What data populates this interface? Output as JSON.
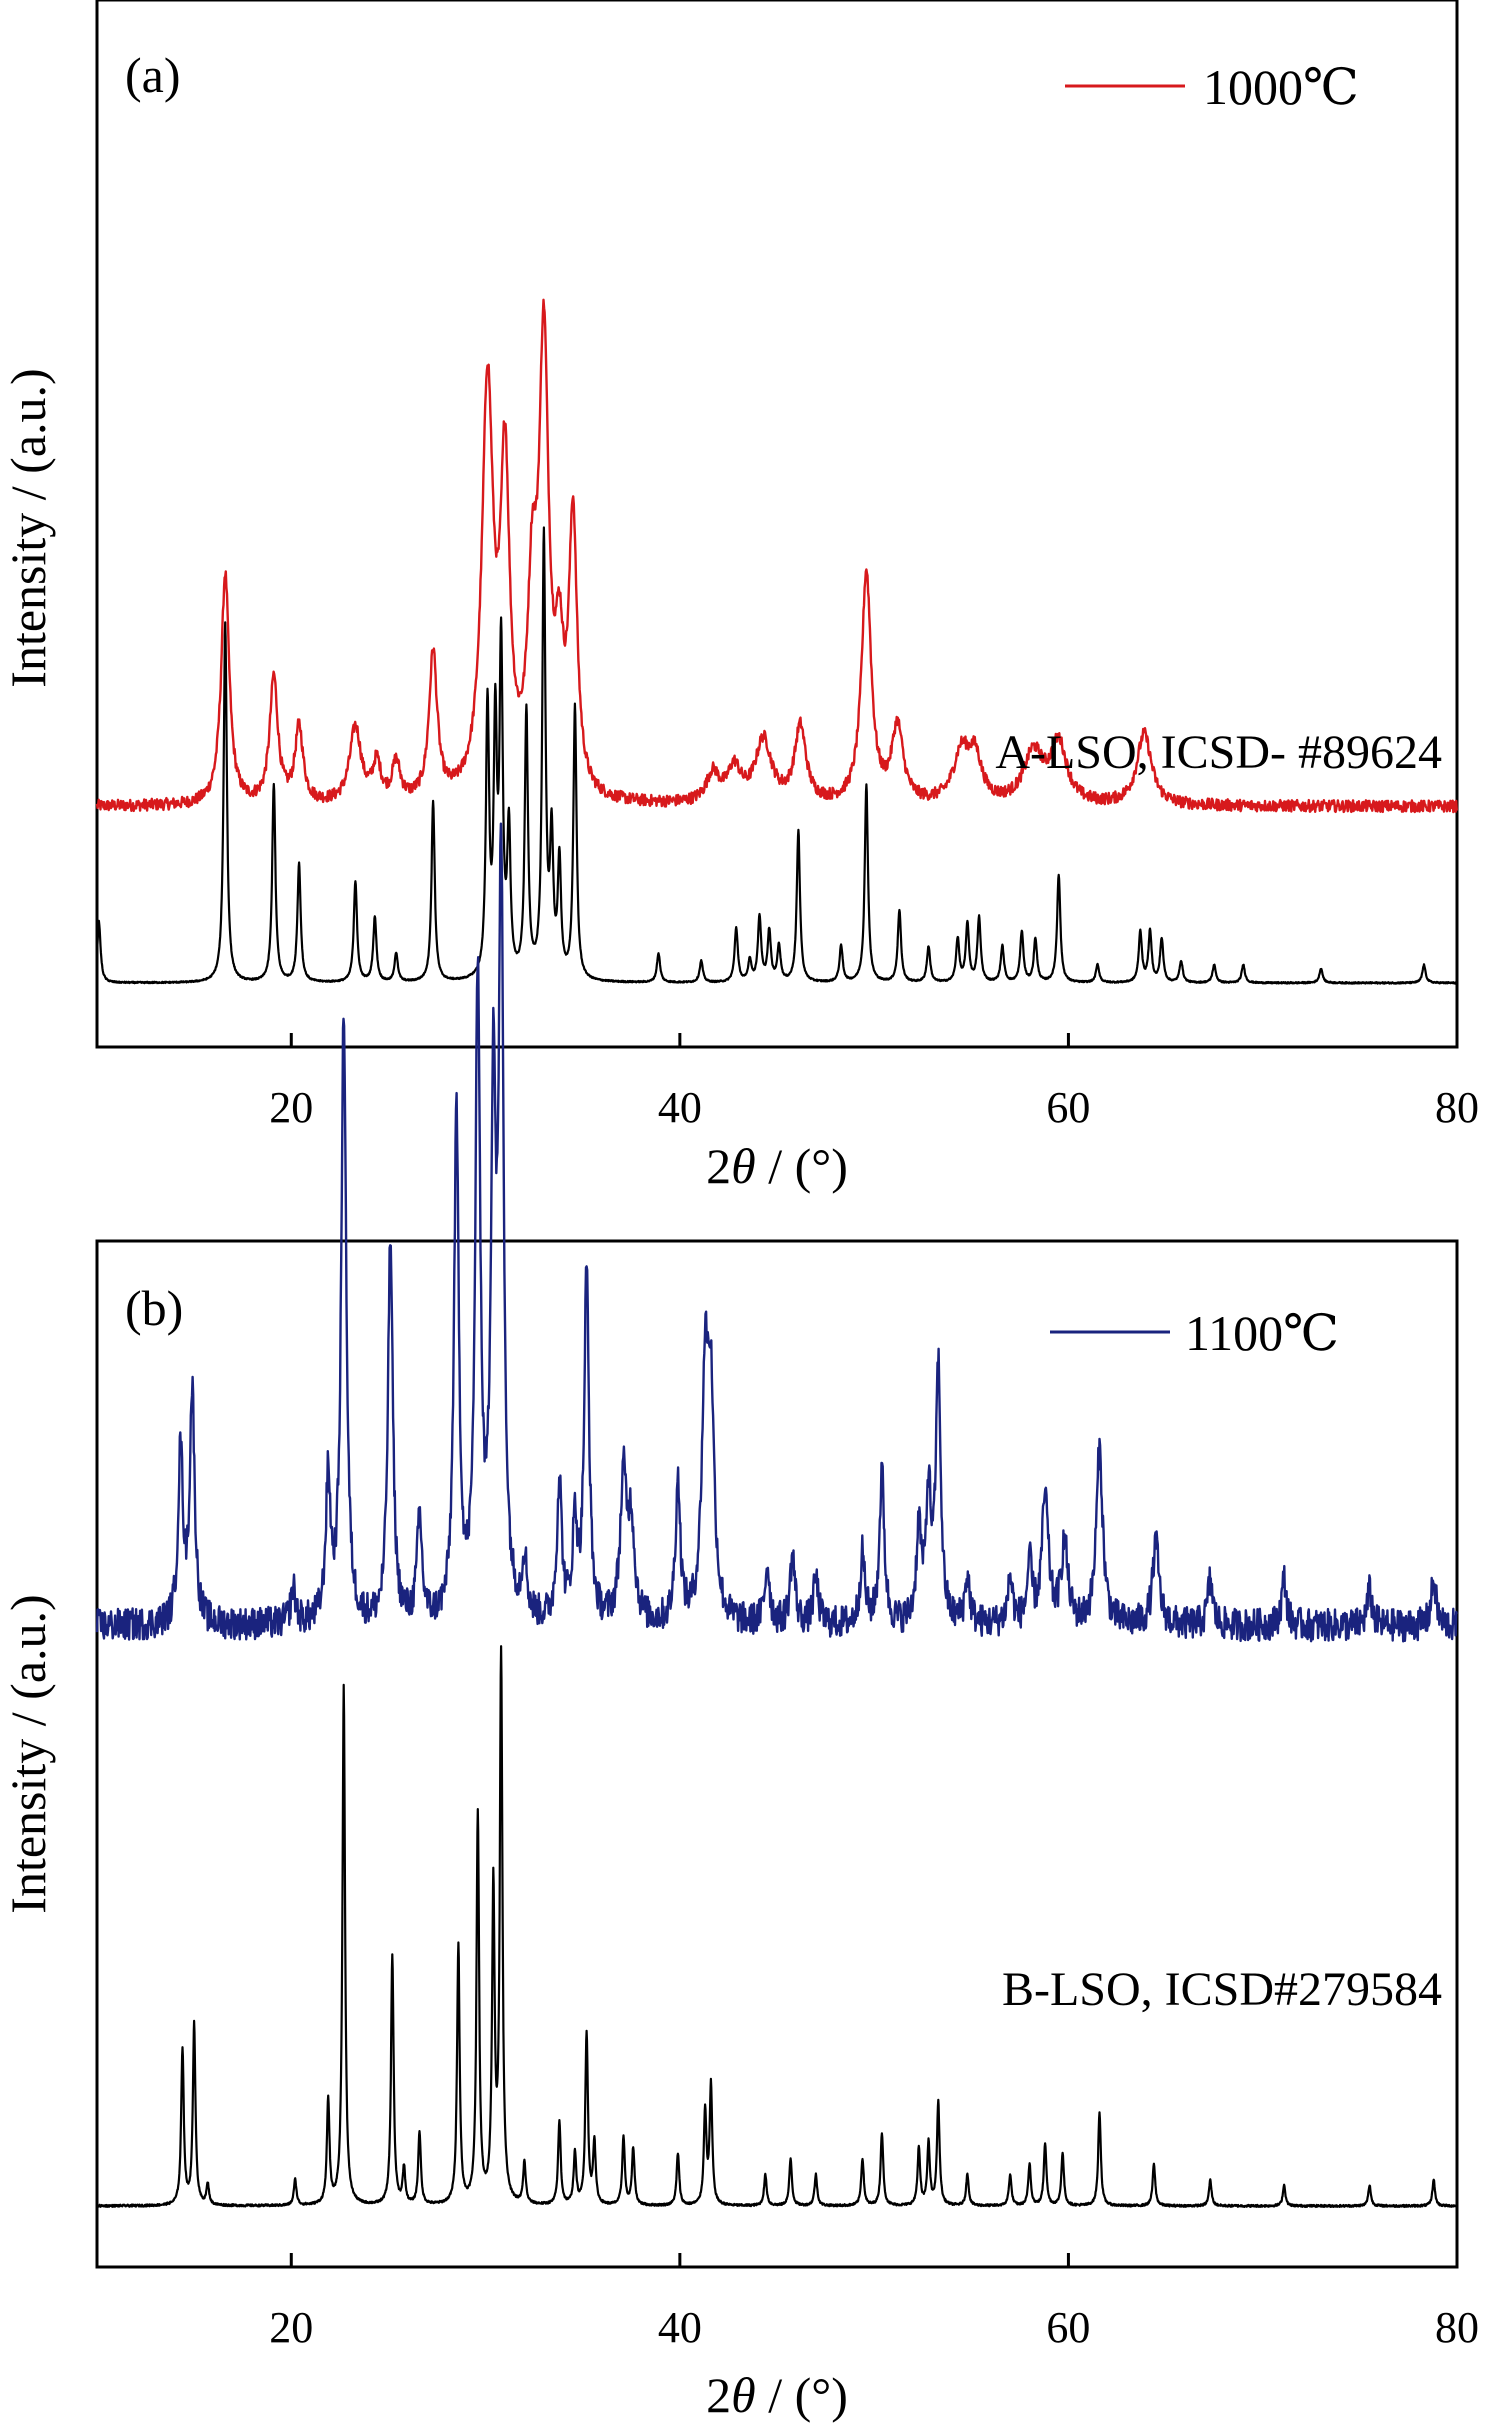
{
  "chart_data": [
    {
      "type": "line",
      "panel_label": "(a)",
      "xlabel_prefix": "2",
      "xlabel_symbol": "θ",
      "xlabel_suffix": " / (°)",
      "ylabel": "Intensity / (a.u.)",
      "xlim": [
        10,
        80
      ],
      "xticks": [
        "20",
        "40",
        "60",
        "80"
      ],
      "xtick_values": [
        20,
        40,
        60,
        80
      ],
      "grid": false,
      "legend_position": "top-right",
      "reference_label": "A-LSO, ICSD- #89624",
      "series": [
        {
          "name": "1000℃",
          "color": "#d7191c",
          "kind": "measured",
          "baseline": 0.42,
          "peaks": [
            [
              16.6,
              0.55,
              0.25
            ],
            [
              19.1,
              0.3,
              0.25
            ],
            [
              20.4,
              0.18,
              0.25
            ],
            [
              23.3,
              0.18,
              0.35
            ],
            [
              24.4,
              0.09,
              0.25
            ],
            [
              25.4,
              0.09,
              0.25
            ],
            [
              27.3,
              0.35,
              0.25
            ],
            [
              30.1,
              0.97,
              0.35
            ],
            [
              31.0,
              0.75,
              0.28
            ],
            [
              32.4,
              0.42,
              0.28
            ],
            [
              33.0,
              1.05,
              0.3
            ],
            [
              33.8,
              0.28,
              0.25
            ],
            [
              34.5,
              0.65,
              0.25
            ],
            [
              41.7,
              0.07,
              0.4
            ],
            [
              42.8,
              0.08,
              0.4
            ],
            [
              44.3,
              0.15,
              0.5
            ],
            [
              46.2,
              0.18,
              0.35
            ],
            [
              49.6,
              0.55,
              0.3
            ],
            [
              51.2,
              0.18,
              0.35
            ],
            [
              54.5,
              0.12,
              0.5
            ],
            [
              55.2,
              0.1,
              0.4
            ],
            [
              58.2,
              0.12,
              0.6
            ],
            [
              59.5,
              0.14,
              0.5
            ],
            [
              63.9,
              0.17,
              0.45
            ]
          ]
        },
        {
          "name": "",
          "color": "#000000",
          "kind": "reference",
          "baseline": 0.0,
          "peaks": [
            [
              10.1,
              0.17,
              0.1
            ],
            [
              16.6,
              1.0,
              0.1
            ],
            [
              19.1,
              0.55,
              0.1
            ],
            [
              20.4,
              0.33,
              0.1
            ],
            [
              23.3,
              0.28,
              0.1
            ],
            [
              24.3,
              0.18,
              0.1
            ],
            [
              25.4,
              0.08,
              0.1
            ],
            [
              27.3,
              0.5,
              0.1
            ],
            [
              30.1,
              0.75,
              0.1
            ],
            [
              30.5,
              0.68,
              0.1
            ],
            [
              30.8,
              0.9,
              0.1
            ],
            [
              31.2,
              0.4,
              0.1
            ],
            [
              32.1,
              0.74,
              0.1
            ],
            [
              33.0,
              1.22,
              0.1
            ],
            [
              33.4,
              0.38,
              0.1
            ],
            [
              33.8,
              0.32,
              0.1
            ],
            [
              34.6,
              0.76,
              0.1
            ],
            [
              38.9,
              0.08,
              0.1
            ],
            [
              41.1,
              0.06,
              0.1
            ],
            [
              42.9,
              0.15,
              0.1
            ],
            [
              43.6,
              0.06,
              0.1
            ],
            [
              44.1,
              0.18,
              0.1
            ],
            [
              44.6,
              0.14,
              0.1
            ],
            [
              45.1,
              0.1,
              0.1
            ],
            [
              46.1,
              0.42,
              0.1
            ],
            [
              48.3,
              0.1,
              0.1
            ],
            [
              49.6,
              0.55,
              0.1
            ],
            [
              51.3,
              0.2,
              0.1
            ],
            [
              52.8,
              0.1,
              0.1
            ],
            [
              54.3,
              0.12,
              0.1
            ],
            [
              54.8,
              0.16,
              0.1
            ],
            [
              55.4,
              0.18,
              0.1
            ],
            [
              56.6,
              0.1,
              0.1
            ],
            [
              57.6,
              0.14,
              0.1
            ],
            [
              58.3,
              0.12,
              0.1
            ],
            [
              59.5,
              0.3,
              0.1
            ],
            [
              61.5,
              0.05,
              0.1
            ],
            [
              63.7,
              0.14,
              0.1
            ],
            [
              64.2,
              0.14,
              0.1
            ],
            [
              64.8,
              0.12,
              0.1
            ],
            [
              65.8,
              0.06,
              0.1
            ],
            [
              67.5,
              0.05,
              0.1
            ],
            [
              69.0,
              0.05,
              0.1
            ],
            [
              73.0,
              0.04,
              0.1
            ],
            [
              78.3,
              0.05,
              0.1
            ]
          ]
        }
      ]
    },
    {
      "type": "line",
      "panel_label": "(b)",
      "xlabel_prefix": "2",
      "xlabel_symbol": "θ",
      "xlabel_suffix": " / (°)",
      "ylabel": "Intensity / (a.u.)",
      "xlim": [
        10,
        80
      ],
      "xticks": [
        "20",
        "40",
        "60",
        "80"
      ],
      "xtick_values": [
        20,
        40,
        60,
        80
      ],
      "grid": false,
      "legend_position": "top-right",
      "reference_label": "B-LSO, ICSD#279584",
      "series": [
        {
          "name": "1100℃",
          "color": "#1a237e",
          "kind": "measured",
          "baseline": 0.5,
          "peaks": [
            [
              14.3,
              0.15,
              0.15
            ],
            [
              14.9,
              0.2,
              0.15
            ],
            [
              20.1,
              0.03,
              0.15
            ],
            [
              21.9,
              0.12,
              0.15
            ],
            [
              22.7,
              0.53,
              0.15
            ],
            [
              25.1,
              0.33,
              0.15
            ],
            [
              26.6,
              0.09,
              0.15
            ],
            [
              28.5,
              0.43,
              0.15
            ],
            [
              29.6,
              0.55,
              0.15
            ],
            [
              30.4,
              0.43,
              0.15
            ],
            [
              30.8,
              0.63,
              0.15
            ],
            [
              32.0,
              0.05,
              0.15
            ],
            [
              33.8,
              0.12,
              0.15
            ],
            [
              34.6,
              0.08,
              0.15
            ],
            [
              35.2,
              0.3,
              0.15
            ],
            [
              37.1,
              0.12,
              0.2
            ],
            [
              37.5,
              0.08,
              0.2
            ],
            [
              39.9,
              0.12,
              0.15
            ],
            [
              41.3,
              0.2,
              0.2
            ],
            [
              41.6,
              0.18,
              0.2
            ],
            [
              44.5,
              0.05,
              0.15
            ],
            [
              45.8,
              0.06,
              0.15
            ],
            [
              47.0,
              0.04,
              0.15
            ],
            [
              49.4,
              0.06,
              0.15
            ],
            [
              50.4,
              0.13,
              0.15
            ],
            [
              52.3,
              0.08,
              0.15
            ],
            [
              52.8,
              0.11,
              0.15
            ],
            [
              53.3,
              0.22,
              0.15
            ],
            [
              54.8,
              0.04,
              0.15
            ],
            [
              57.0,
              0.04,
              0.15
            ],
            [
              58.0,
              0.05,
              0.15
            ],
            [
              58.8,
              0.11,
              0.2
            ],
            [
              59.8,
              0.07,
              0.2
            ],
            [
              61.6,
              0.15,
              0.2
            ],
            [
              64.5,
              0.07,
              0.2
            ],
            [
              67.3,
              0.04,
              0.15
            ],
            [
              71.1,
              0.04,
              0.15
            ],
            [
              75.5,
              0.03,
              0.15
            ],
            [
              78.8,
              0.04,
              0.15
            ]
          ]
        },
        {
          "name": "",
          "color": "#000000",
          "kind": "reference",
          "baseline": 0.0,
          "peaks": [
            [
              14.4,
              0.3,
              0.08
            ],
            [
              15.0,
              0.35,
              0.08
            ],
            [
              15.7,
              0.04,
              0.08
            ],
            [
              20.2,
              0.05,
              0.08
            ],
            [
              21.9,
              0.2,
              0.08
            ],
            [
              22.7,
              1.0,
              0.08
            ],
            [
              25.2,
              0.48,
              0.08
            ],
            [
              25.8,
              0.07,
              0.08
            ],
            [
              26.6,
              0.14,
              0.08
            ],
            [
              28.6,
              0.5,
              0.08
            ],
            [
              29.6,
              0.75,
              0.08
            ],
            [
              30.4,
              0.6,
              0.08
            ],
            [
              30.8,
              1.05,
              0.08
            ],
            [
              32.0,
              0.08,
              0.08
            ],
            [
              33.8,
              0.16,
              0.08
            ],
            [
              34.6,
              0.1,
              0.08
            ],
            [
              35.2,
              0.33,
              0.08
            ],
            [
              35.6,
              0.12,
              0.08
            ],
            [
              37.1,
              0.13,
              0.08
            ],
            [
              37.6,
              0.11,
              0.08
            ],
            [
              39.9,
              0.1,
              0.08
            ],
            [
              41.3,
              0.18,
              0.08
            ],
            [
              41.6,
              0.23,
              0.08
            ],
            [
              44.4,
              0.06,
              0.08
            ],
            [
              45.7,
              0.09,
              0.08
            ],
            [
              47.0,
              0.06,
              0.08
            ],
            [
              49.4,
              0.09,
              0.08
            ],
            [
              50.4,
              0.14,
              0.08
            ],
            [
              52.3,
              0.11,
              0.08
            ],
            [
              52.8,
              0.12,
              0.08
            ],
            [
              53.3,
              0.2,
              0.08
            ],
            [
              54.8,
              0.06,
              0.08
            ],
            [
              57.0,
              0.06,
              0.08
            ],
            [
              58.0,
              0.08,
              0.08
            ],
            [
              58.8,
              0.12,
              0.08
            ],
            [
              59.7,
              0.1,
              0.08
            ],
            [
              61.6,
              0.18,
              0.08
            ],
            [
              64.4,
              0.08,
              0.08
            ],
            [
              67.3,
              0.05,
              0.08
            ],
            [
              71.1,
              0.04,
              0.08
            ],
            [
              75.5,
              0.04,
              0.08
            ],
            [
              78.8,
              0.05,
              0.08
            ]
          ]
        }
      ]
    }
  ]
}
